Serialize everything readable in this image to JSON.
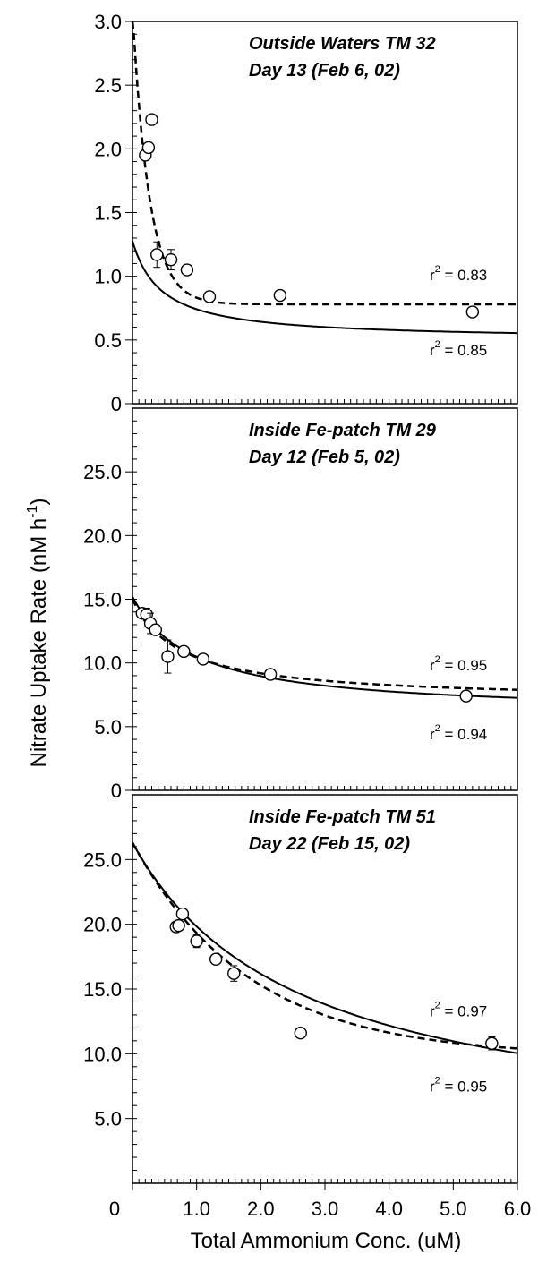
{
  "chart_data": [
    {
      "type": "scatter",
      "title_lines": [
        "Outside Waters  TM 32",
        "Day 13  (Feb 6, 02)"
      ],
      "xlim": [
        0,
        6.0
      ],
      "ylim": [
        0,
        3.0
      ],
      "y_ticks": [
        "0",
        "0.5",
        "1.0",
        "1.5",
        "2.0",
        "2.5",
        "3.0"
      ],
      "y_tick_values": [
        0,
        0.5,
        1.0,
        1.5,
        2.0,
        2.5,
        3.0
      ],
      "points": [
        {
          "x": 0.2,
          "y": 1.95
        },
        {
          "x": 0.25,
          "y": 2.01
        },
        {
          "x": 0.3,
          "y": 2.23
        },
        {
          "x": 0.38,
          "y": 1.17,
          "err": 0.1
        },
        {
          "x": 0.6,
          "y": 1.13,
          "err": 0.08
        },
        {
          "x": 0.85,
          "y": 1.05
        },
        {
          "x": 1.2,
          "y": 0.84
        },
        {
          "x": 2.3,
          "y": 0.85
        },
        {
          "x": 5.3,
          "y": 0.72
        }
      ],
      "fits": {
        "solid": {
          "a": 0.35,
          "b": 0.45,
          "c": 0.0
        },
        "dashed": {
          "a": 2.3,
          "b": 0.3,
          "c": 0.0,
          "d": 0.78,
          "k": 3.8,
          "form": "exp"
        }
      },
      "r2_labels": [
        {
          "base": "r",
          "sup": "2",
          "text": " = 0.83",
          "y_value": 0.97
        },
        {
          "base": "r",
          "sup": "2",
          "text": " = 0.85",
          "y_value": 0.38
        }
      ]
    },
    {
      "type": "scatter",
      "title_lines": [
        "Inside Fe-patch  TM 29",
        "Day 12  (Feb 5, 02)"
      ],
      "xlim": [
        0,
        6.0
      ],
      "ylim": [
        0,
        30.0
      ],
      "y_ticks": [
        "0",
        "5.0",
        "10.0",
        "15.0",
        "20.0",
        "25.0"
      ],
      "y_tick_values": [
        0,
        5.0,
        10.0,
        15.0,
        20.0,
        25.0
      ],
      "points": [
        {
          "x": 0.15,
          "y": 13.9
        },
        {
          "x": 0.22,
          "y": 13.8,
          "err": 0.5
        },
        {
          "x": 0.28,
          "y": 13.1,
          "err": 0.8
        },
        {
          "x": 0.36,
          "y": 12.6
        },
        {
          "x": 0.55,
          "y": 10.5,
          "err": 1.3
        },
        {
          "x": 0.8,
          "y": 10.9
        },
        {
          "x": 1.1,
          "y": 10.3
        },
        {
          "x": 2.15,
          "y": 9.1
        },
        {
          "x": 5.2,
          "y": 7.4
        }
      ],
      "fits": {
        "solid": {
          "form": "hyper",
          "vmax": 15.2,
          "inf": 6.0,
          "k": 0.95
        },
        "dashed": {
          "form": "hyper",
          "vmax": 15.0,
          "inf": 7.0,
          "k": 0.75
        }
      },
      "r2_labels": [
        {
          "base": "r",
          "sup": "2",
          "text": " = 0.95",
          "y_value": 9.4
        },
        {
          "base": "r",
          "sup": "2",
          "text": " = 0.94",
          "y_value": 4.0
        }
      ]
    },
    {
      "type": "scatter",
      "title_lines": [
        "Inside Fe-patch  TM 51",
        "Day 22  (Feb 15, 02)"
      ],
      "xlim": [
        0,
        6.0
      ],
      "ylim": [
        0,
        30.0
      ],
      "y_ticks": [
        "5.0",
        "10.0",
        "15.0",
        "20.0",
        "25.0"
      ],
      "y_tick_values": [
        5.0,
        10.0,
        15.0,
        20.0,
        25.0
      ],
      "x_ticks": [
        "0",
        "1.0",
        "2.0",
        "3.0",
        "4.0",
        "5.0",
        "6.0"
      ],
      "x_tick_values": [
        0,
        1.0,
        2.0,
        3.0,
        4.0,
        5.0,
        6.0
      ],
      "points": [
        {
          "x": 0.68,
          "y": 19.8
        },
        {
          "x": 0.72,
          "y": 19.9
        },
        {
          "x": 0.78,
          "y": 20.8
        },
        {
          "x": 1.0,
          "y": 18.7,
          "err": 0.5
        },
        {
          "x": 1.3,
          "y": 17.3
        },
        {
          "x": 1.58,
          "y": 16.2,
          "err": 0.6
        },
        {
          "x": 2.62,
          "y": 11.6
        },
        {
          "x": 5.6,
          "y": 10.8,
          "err": 0.5
        }
      ],
      "fits": {
        "solid": {
          "form": "hyper",
          "vmax": 26.3,
          "inf": 3.0,
          "k": 2.6
        },
        "dashed": {
          "form": "exp2",
          "inf": 9.8,
          "amp": 16.5,
          "k": 0.55
        }
      },
      "r2_labels": [
        {
          "base": "r",
          "sup": "2",
          "text": " = 0.97",
          "y_value": 12.9
        },
        {
          "base": "r",
          "sup": "2",
          "text": " = 0.95",
          "y_value": 7.1
        }
      ]
    }
  ],
  "axes": {
    "ylabel": "Nitrate Uptake Rate  (nM h",
    "ylabel_sup": "-1",
    "ylabel_close": ")",
    "xlabel": "Total Ammonium Conc. (uM)"
  }
}
